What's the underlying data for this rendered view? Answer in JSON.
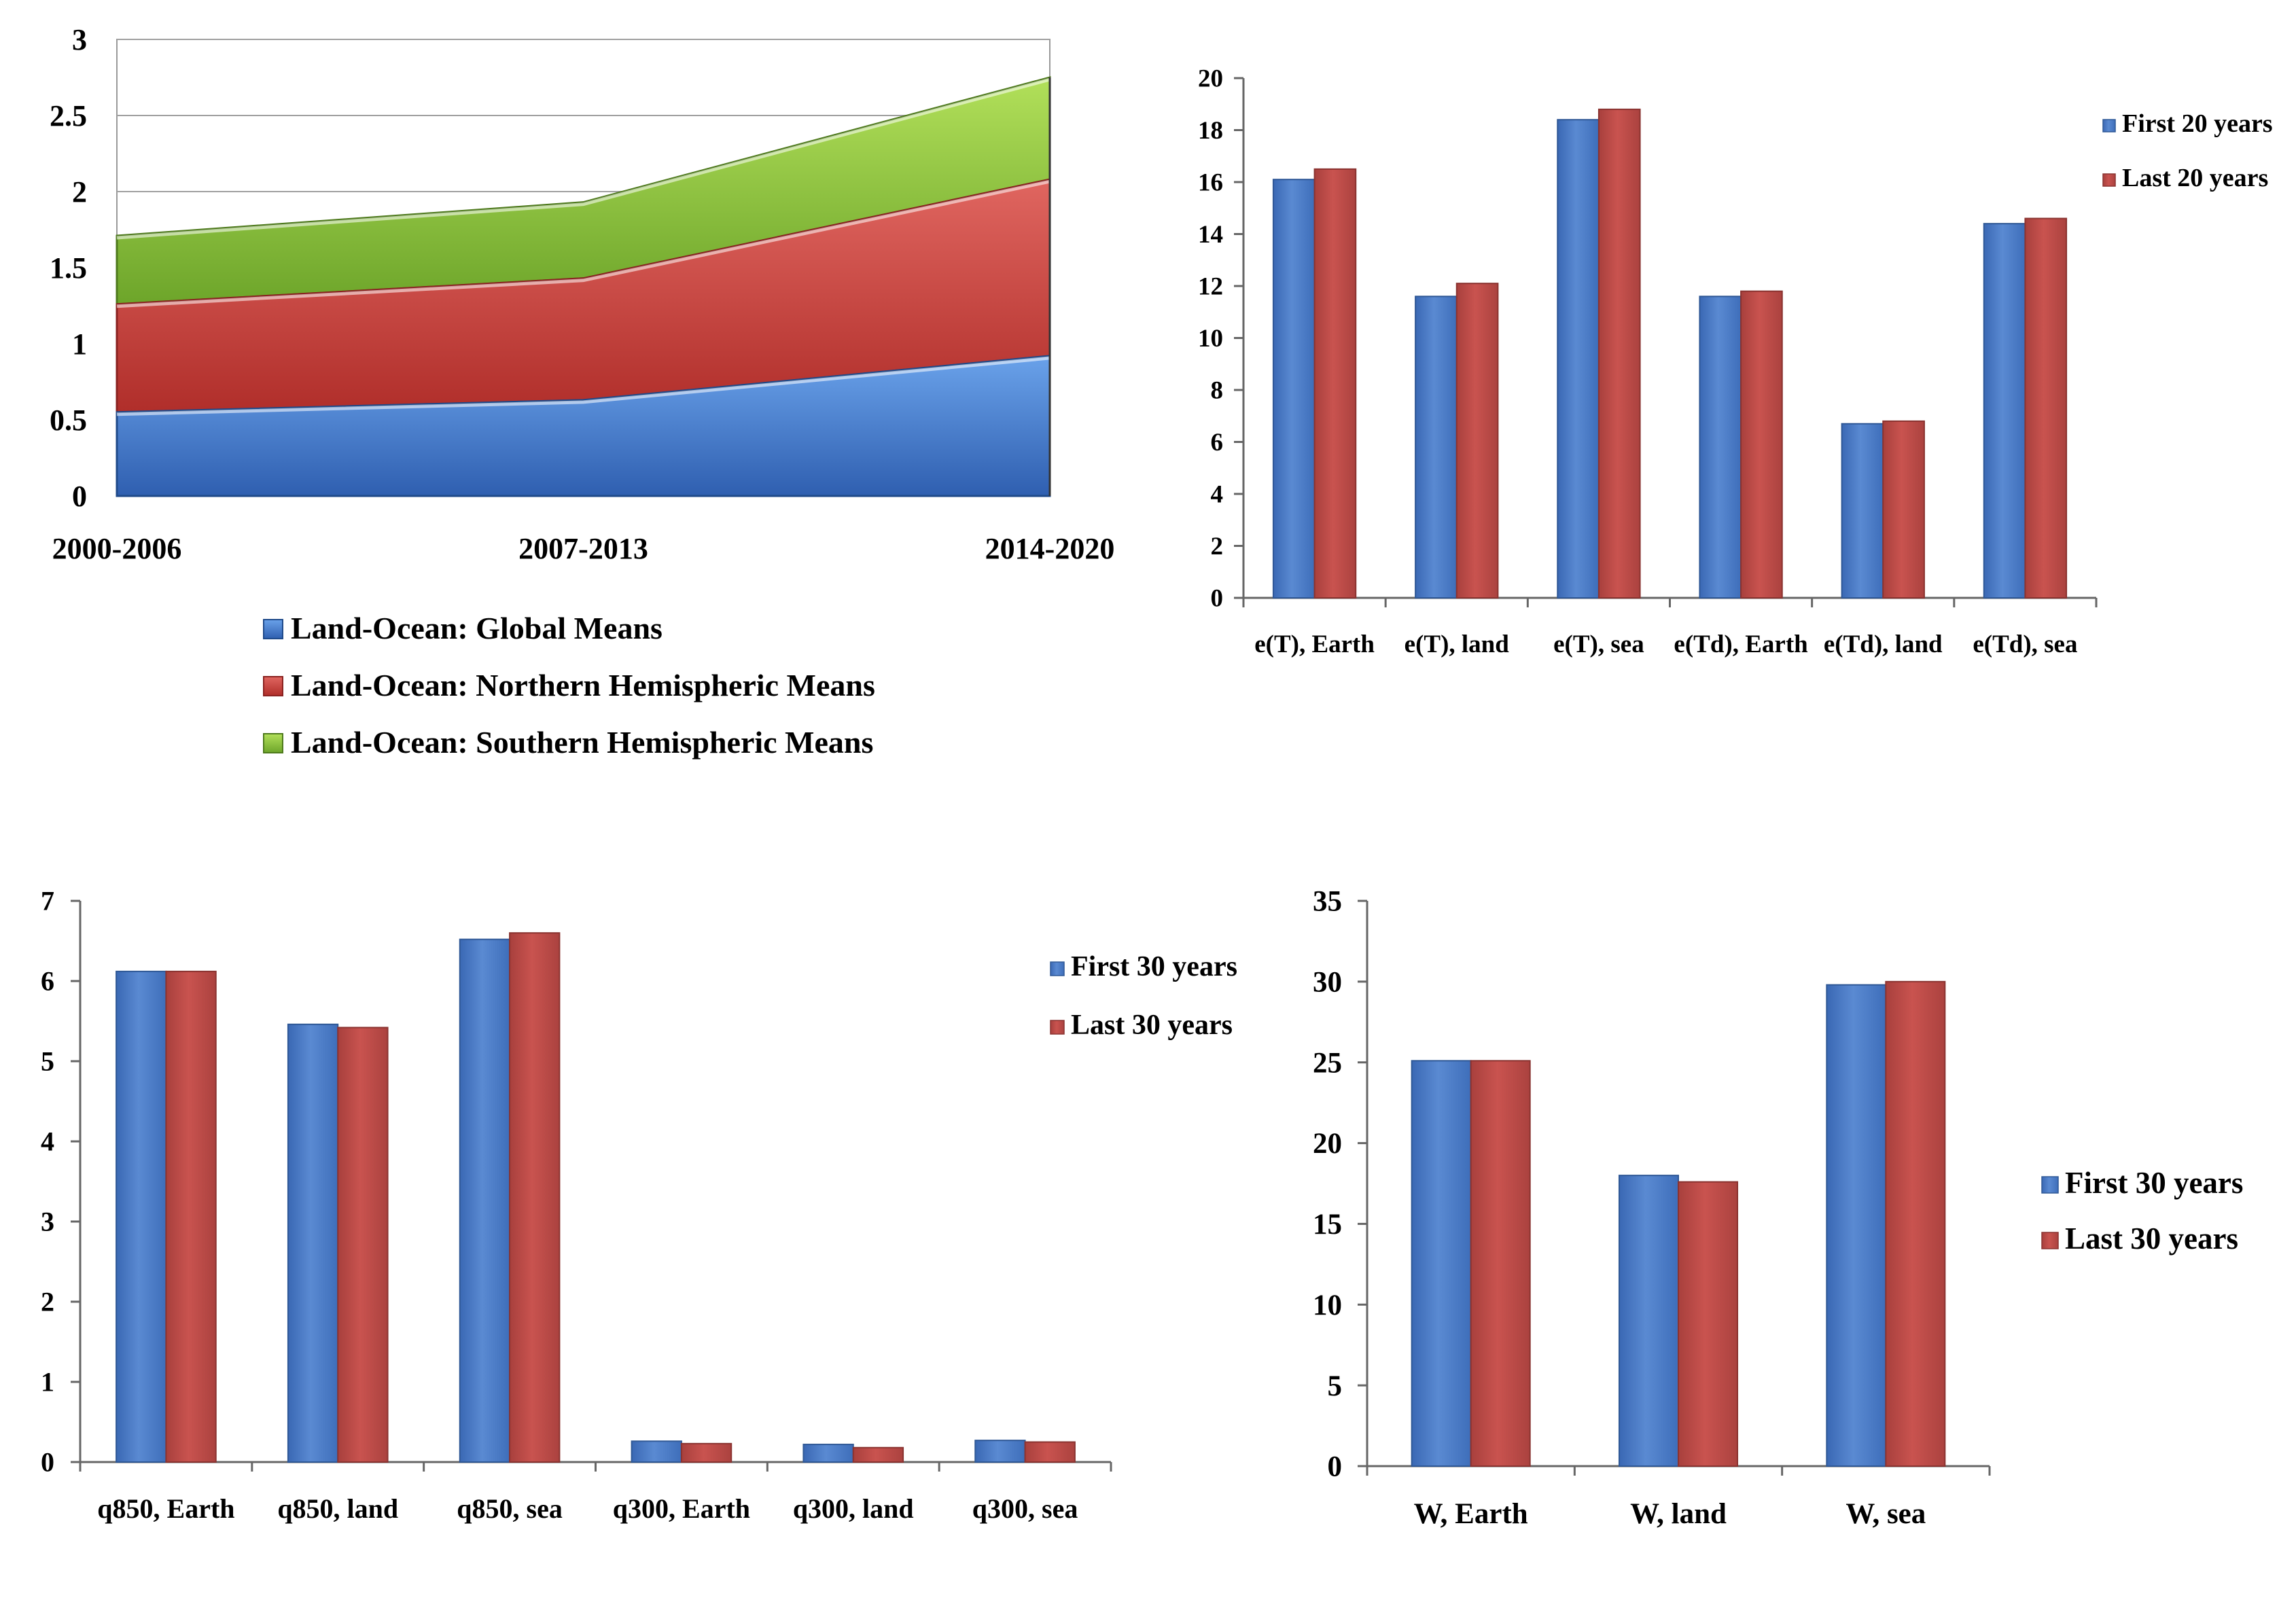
{
  "chart_data": [
    {
      "type": "area",
      "stacked": true,
      "categories": [
        "2000-2006",
        "2007-2013",
        "2014-2020"
      ],
      "series": [
        {
          "name": "Land-Ocean: Global Means",
          "color": "#3f75c8",
          "values": [
            0.55,
            0.63,
            0.92
          ]
        },
        {
          "name": "Land-Ocean: Northern Hemispheric Means",
          "color": "#d0433c",
          "values": [
            0.71,
            0.8,
            1.16
          ]
        },
        {
          "name": "Land-Ocean: Southern Hemispheric Means",
          "color": "#8dc33c",
          "values": [
            0.45,
            0.5,
            0.67
          ]
        }
      ],
      "ylim": [
        0,
        3
      ],
      "yticks": [
        "0",
        "0.5",
        "1",
        "1.5",
        "2",
        "2.5",
        "3"
      ],
      "grid": true,
      "legend": "bottom"
    },
    {
      "type": "bar",
      "categories": [
        "e(T), Earth",
        "e(T), land",
        "e(T), sea",
        "e(Td), Earth",
        "e(Td), land",
        "e(Td), sea"
      ],
      "series": [
        {
          "name": "First 20 years",
          "color": "#4a7cc6",
          "values": [
            16.1,
            11.6,
            18.4,
            11.6,
            6.7,
            14.4
          ]
        },
        {
          "name": "Last 20 years",
          "color": "#c0504d",
          "values": [
            16.5,
            12.1,
            18.8,
            11.8,
            6.8,
            14.6
          ]
        }
      ],
      "ylim": [
        0,
        20
      ],
      "yticks": [
        "0",
        "2",
        "4",
        "6",
        "8",
        "10",
        "12",
        "14",
        "16",
        "18",
        "20"
      ],
      "grid": false,
      "legend": "right"
    },
    {
      "type": "bar",
      "categories": [
        "q850, Earth",
        "q850, land",
        "q850, sea",
        "q300, Earth",
        "q300, land",
        "q300, sea"
      ],
      "series": [
        {
          "name": "First 30 years",
          "color": "#4a7cc6",
          "values": [
            6.12,
            5.46,
            6.52,
            0.26,
            0.22,
            0.27
          ]
        },
        {
          "name": "Last 30 years",
          "color": "#c0504d",
          "values": [
            6.12,
            5.42,
            6.6,
            0.23,
            0.18,
            0.25
          ]
        }
      ],
      "ylim": [
        0,
        7
      ],
      "yticks": [
        "0",
        "1",
        "2",
        "3",
        "4",
        "5",
        "6",
        "7"
      ],
      "grid": false,
      "legend": "right"
    },
    {
      "type": "bar",
      "categories": [
        "W, Earth",
        "W, land",
        "W, sea"
      ],
      "series": [
        {
          "name": "First 30 years",
          "color": "#4a7cc6",
          "values": [
            25.1,
            18.0,
            29.8
          ]
        },
        {
          "name": "Last 30 years",
          "color": "#c0504d",
          "values": [
            25.1,
            17.6,
            30.0
          ]
        }
      ],
      "ylim": [
        0,
        35
      ],
      "yticks": [
        "0",
        "5",
        "10",
        "15",
        "20",
        "25",
        "30",
        "35"
      ],
      "grid": false,
      "legend": "right"
    }
  ]
}
